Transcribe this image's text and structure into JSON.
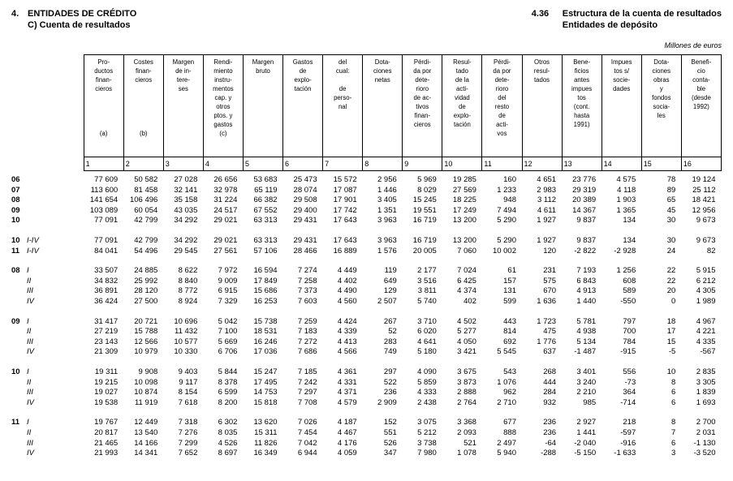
{
  "page": {
    "section_number": "4.",
    "section_title": "ENTIDADES DE CRÉDITO",
    "section_subtitle": "C) Cuenta de resultados",
    "table_number": "4.36",
    "table_title": "Estructura de la cuenta de resultados",
    "table_subtitle": "Entidades de depósito",
    "units_note": "Millones de euros"
  },
  "table": {
    "headers": [
      "Pro-\nductos\nfinan-\ncieros\n\n\n\n\n(a)",
      "Costes\nfinan-\ncieros\n\n\n\n\n\n(b)",
      "Margen\nde in-\ntere-\nses",
      "Rendi-\nmiento\ninstru-\nmentos\ncap. y\notros\nptos. y\ngastos\n(c)",
      "Margen\nbruto",
      "Gastos\nde\nexplo-\ntación",
      "del\ncual:\n\nde\nperso-\nnal",
      "Dota-\nciones\nnetas",
      "Pérdi-\nda por\ndete-\nrioro\nde ac-\ntivos\nfinan-\ncieros",
      "Resul-\ntado\nde la\nacti-\nvidad\nde\nexplo-\ntación",
      "Pérdi-\nda por\ndete-\nrioro\ndel\nresto\nde\nacti-\nvos",
      "Otros\nresul-\ntados",
      "Bene-\nficios\nantes\nimpues\ntos\n(cont.\nhasta\n1991)",
      "Impues\ntos s/\nsocie-\ndades",
      "Dota-\nciones\nobras\ny\nfondos\nsocia-\nles",
      "Benefi-\ncio\nconta-\nble\n(desde\n1992)"
    ],
    "col_numbers": [
      "1",
      "2",
      "3",
      "4",
      "5",
      "6",
      "7",
      "8",
      "9",
      "10",
      "11",
      "12",
      "13",
      "14",
      "15",
      "16"
    ],
    "groups": [
      {
        "rows": [
          {
            "year": "06",
            "period": "",
            "values": [
              "77 609",
              "50 582",
              "27 028",
              "26 656",
              "53 683",
              "25 473",
              "15 572",
              "2 956",
              "5 969",
              "19 285",
              "160",
              "4 651",
              "23 776",
              "4 575",
              "78",
              "19 124"
            ]
          },
          {
            "year": "07",
            "period": "",
            "values": [
              "113 600",
              "81 458",
              "32 141",
              "32 978",
              "65 119",
              "28 074",
              "17 087",
              "1 446",
              "8 029",
              "27 569",
              "1 233",
              "2 983",
              "29 319",
              "4 118",
              "89",
              "25 112"
            ]
          },
          {
            "year": "08",
            "period": "",
            "values": [
              "141 654",
              "106 496",
              "35 158",
              "31 224",
              "66 382",
              "29 508",
              "17 901",
              "3 405",
              "15 245",
              "18 225",
              "948",
              "3 112",
              "20 389",
              "1 903",
              "65",
              "18 421"
            ]
          },
          {
            "year": "09",
            "period": "",
            "values": [
              "103 089",
              "60 054",
              "43 035",
              "24 517",
              "67 552",
              "29 400",
              "17 742",
              "1 351",
              "19 551",
              "17 249",
              "7 494",
              "4 611",
              "14 367",
              "1 365",
              "45",
              "12 956"
            ]
          },
          {
            "year": "10",
            "period": "",
            "values": [
              "77 091",
              "42 799",
              "34 292",
              "29 021",
              "63 313",
              "29 431",
              "17 643",
              "3 963",
              "16 719",
              "13 200",
              "5 290",
              "1 927",
              "9 837",
              "134",
              "30",
              "9 673"
            ]
          }
        ]
      },
      {
        "rows": [
          {
            "year": "10",
            "period": "I-IV",
            "values": [
              "77 091",
              "42 799",
              "34 292",
              "29 021",
              "63 313",
              "29 431",
              "17 643",
              "3 963",
              "16 719",
              "13 200",
              "5 290",
              "1 927",
              "9 837",
              "134",
              "30",
              "9 673"
            ]
          },
          {
            "year": "11",
            "period": "I-IV",
            "values": [
              "84 041",
              "54 496",
              "29 545",
              "27 561",
              "57 106",
              "28 466",
              "16 889",
              "1 576",
              "20 005",
              "7 060",
              "10 002",
              "120",
              "-2 822",
              "-2 928",
              "24",
              "82"
            ]
          }
        ]
      },
      {
        "rows": [
          {
            "year": "08",
            "period": "I",
            "values": [
              "33 507",
              "24 885",
              "8 622",
              "7 972",
              "16 594",
              "7 274",
              "4 449",
              "119",
              "2 177",
              "7 024",
              "61",
              "231",
              "7 193",
              "1 256",
              "22",
              "5 915"
            ]
          },
          {
            "year": "",
            "period": "II",
            "values": [
              "34 832",
              "25 992",
              "8 840",
              "9 009",
              "17 849",
              "7 258",
              "4 402",
              "649",
              "3 516",
              "6 425",
              "157",
              "575",
              "6 843",
              "608",
              "22",
              "6 212"
            ]
          },
          {
            "year": "",
            "period": "III",
            "values": [
              "36 891",
              "28 120",
              "8 772",
              "6 915",
              "15 686",
              "7 373",
              "4 490",
              "129",
              "3 811",
              "4 374",
              "131",
              "670",
              "4 913",
              "589",
              "20",
              "4 305"
            ]
          },
          {
            "year": "",
            "period": "IV",
            "values": [
              "36 424",
              "27 500",
              "8 924",
              "7 329",
              "16 253",
              "7 603",
              "4 560",
              "2 507",
              "5 740",
              "402",
              "599",
              "1 636",
              "1 440",
              "-550",
              "0",
              "1 989"
            ]
          }
        ]
      },
      {
        "rows": [
          {
            "year": "09",
            "period": "I",
            "values": [
              "31 417",
              "20 721",
              "10 696",
              "5 042",
              "15 738",
              "7 259",
              "4 424",
              "267",
              "3 710",
              "4 502",
              "443",
              "1 723",
              "5 781",
              "797",
              "18",
              "4 967"
            ]
          },
          {
            "year": "",
            "period": "II",
            "values": [
              "27 219",
              "15 788",
              "11 432",
              "7 100",
              "18 531",
              "7 183",
              "4 339",
              "52",
              "6 020",
              "5 277",
              "814",
              "475",
              "4 938",
              "700",
              "17",
              "4 221"
            ]
          },
          {
            "year": "",
            "period": "III",
            "values": [
              "23 143",
              "12 566",
              "10 577",
              "5 669",
              "16 246",
              "7 272",
              "4 413",
              "283",
              "4 641",
              "4 050",
              "692",
              "1 776",
              "5 134",
              "784",
              "15",
              "4 335"
            ]
          },
          {
            "year": "",
            "period": "IV",
            "values": [
              "21 309",
              "10 979",
              "10 330",
              "6 706",
              "17 036",
              "7 686",
              "4 566",
              "749",
              "5 180",
              "3 421",
              "5 545",
              "637",
              "-1 487",
              "-915",
              "-5",
              "-567"
            ]
          }
        ]
      },
      {
        "rows": [
          {
            "year": "10",
            "period": "I",
            "values": [
              "19 311",
              "9 908",
              "9 403",
              "5 844",
              "15 247",
              "7 185",
              "4 361",
              "297",
              "4 090",
              "3 675",
              "543",
              "268",
              "3 401",
              "556",
              "10",
              "2 835"
            ]
          },
          {
            "year": "",
            "period": "II",
            "values": [
              "19 215",
              "10 098",
              "9 117",
              "8 378",
              "17 495",
              "7 242",
              "4 331",
              "522",
              "5 859",
              "3 873",
              "1 076",
              "444",
              "3 240",
              "-73",
              "8",
              "3 305"
            ]
          },
          {
            "year": "",
            "period": "III",
            "values": [
              "19 027",
              "10 874",
              "8 154",
              "6 599",
              "14 753",
              "7 297",
              "4 371",
              "236",
              "4 333",
              "2 888",
              "962",
              "284",
              "2 210",
              "364",
              "6",
              "1 839"
            ]
          },
          {
            "year": "",
            "period": "IV",
            "values": [
              "19 538",
              "11 919",
              "7 618",
              "8 200",
              "15 818",
              "7 708",
              "4 579",
              "2 909",
              "2 438",
              "2 764",
              "2 710",
              "932",
              "985",
              "-714",
              "6",
              "1 693"
            ]
          }
        ]
      },
      {
        "rows": [
          {
            "year": "11",
            "period": "I",
            "values": [
              "19 767",
              "12 449",
              "7 318",
              "6 302",
              "13 620",
              "7 026",
              "4 187",
              "152",
              "3 075",
              "3 368",
              "677",
              "236",
              "2 927",
              "218",
              "8",
              "2 700"
            ]
          },
          {
            "year": "",
            "period": "II",
            "values": [
              "20 817",
              "13 540",
              "7 276",
              "8 035",
              "15 311",
              "7 454",
              "4 467",
              "551",
              "5 212",
              "2 093",
              "888",
              "236",
              "1 441",
              "-597",
              "7",
              "2 031"
            ]
          },
          {
            "year": "",
            "period": "III",
            "values": [
              "21 465",
              "14 166",
              "7 299",
              "4 526",
              "11 826",
              "7 042",
              "4 176",
              "526",
              "3 738",
              "521",
              "2 497",
              "-64",
              "-2 040",
              "-916",
              "6",
              "-1 130"
            ]
          },
          {
            "year": "",
            "period": "IV",
            "values": [
              "21 993",
              "14 341",
              "7 652",
              "8 697",
              "16 349",
              "6 944",
              "4 059",
              "347",
              "7 980",
              "1 078",
              "5 940",
              "-288",
              "-5 150",
              "-1 633",
              "3",
              "-3 520"
            ]
          }
        ]
      }
    ]
  }
}
